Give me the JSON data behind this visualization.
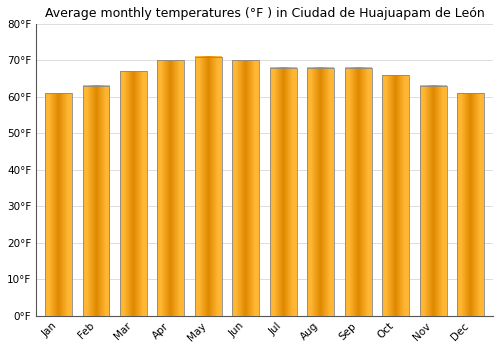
{
  "title": "Average monthly temperatures (°F ) in Ciudad de Huajuapam de León",
  "months": [
    "Jan",
    "Feb",
    "Mar",
    "Apr",
    "May",
    "Jun",
    "Jul",
    "Aug",
    "Sep",
    "Oct",
    "Nov",
    "Dec"
  ],
  "values": [
    61,
    63,
    67,
    70,
    71,
    70,
    68,
    68,
    68,
    66,
    63,
    61
  ],
  "bar_color_light": "#FFB733",
  "bar_color_dark": "#E08800",
  "bar_edge_color": "#888888",
  "background_color": "#FFFFFF",
  "grid_color": "#DDDDDD",
  "ylim": [
    0,
    80
  ],
  "yticks": [
    0,
    10,
    20,
    30,
    40,
    50,
    60,
    70,
    80
  ],
  "ytick_labels": [
    "0°F",
    "10°F",
    "20°F",
    "30°F",
    "40°F",
    "50°F",
    "60°F",
    "70°F",
    "80°F"
  ],
  "title_fontsize": 9,
  "tick_fontsize": 7.5,
  "bar_width": 0.72
}
